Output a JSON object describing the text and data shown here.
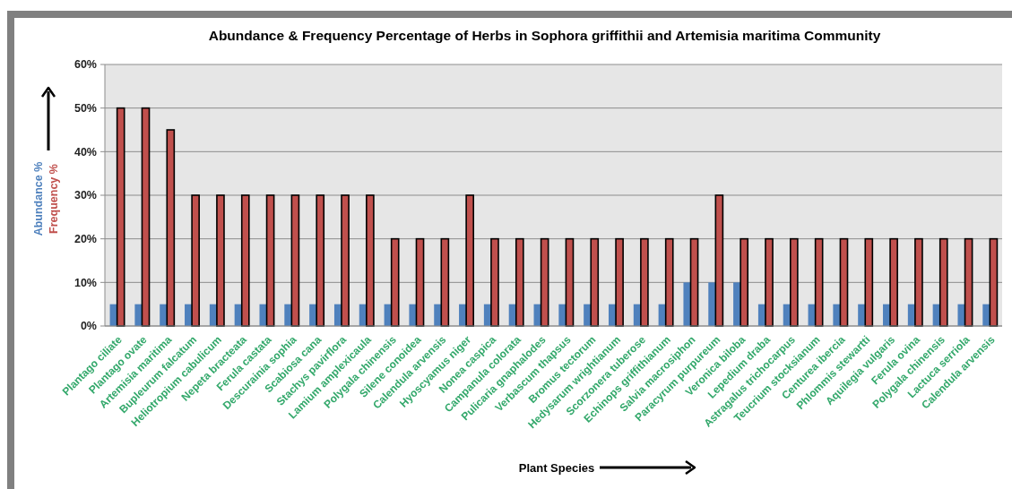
{
  "chart_data": {
    "type": "bar",
    "title": "Abundance & Frequency Percentage of Herbs in Sophora griffithii and Artemisia maritima Community",
    "xlabel": "Plant Species",
    "categories": [
      "Plantago ciliate",
      "Plantago ovate",
      "Artemisia maritima",
      "Bupleurum falcatum",
      "Heliotropium cabulicum",
      "Nepeta bracteata",
      "Ferula castata",
      "Descurainia sophia",
      "Scabiosa cana",
      "Stachys pavirflora",
      "Lamium amplexicaula",
      "Polygala chinensis",
      "Silene conoidea",
      "Calendula arvensis",
      "Hyoscyamus niger",
      "Nonea caspica",
      "Campanula colorata",
      "Pulicaria gnaphalodes",
      "Verbascum thapsus",
      "Bromus tectorum",
      "Hedysarum wrightianum",
      "Scorzonera tuberose",
      "Echinops griffithianum",
      "Salvia macrosiphon",
      "Paracyrum purpureum",
      "Veronica biloba",
      "Lepedium draba",
      "Astragalus trichocarpus",
      "Teucrium stocksianum",
      "Centurea ibercia",
      "Phlommis stewartti",
      "Aquilegia vulgaris",
      "Ferula ovina",
      "Polygala chinensis",
      "Lactuca serriola",
      "Calendula arvensis"
    ],
    "series": [
      {
        "name": "Abundance %",
        "color": "#4f81bd",
        "values": [
          5,
          5,
          5,
          5,
          5,
          5,
          5,
          5,
          5,
          5,
          5,
          5,
          5,
          5,
          5,
          5,
          5,
          5,
          5,
          5,
          5,
          5,
          5,
          10,
          10,
          10,
          5,
          5,
          5,
          5,
          5,
          5,
          5,
          5,
          5,
          5
        ]
      },
      {
        "name": "Frequency %",
        "color": "#c0504d",
        "values": [
          50,
          50,
          45,
          30,
          30,
          30,
          30,
          30,
          30,
          30,
          30,
          20,
          20,
          20,
          30,
          20,
          20,
          20,
          20,
          20,
          20,
          20,
          20,
          20,
          30,
          20,
          20,
          20,
          20,
          20,
          20,
          20,
          20,
          20,
          20,
          20
        ]
      }
    ],
    "ylim": [
      0,
      60
    ],
    "yticks": [
      {
        "value": 0,
        "label": "0%"
      },
      {
        "value": 10,
        "label": "10%"
      },
      {
        "value": 20,
        "label": "20%"
      },
      {
        "value": 30,
        "label": "30%"
      },
      {
        "value": 40,
        "label": "40%"
      },
      {
        "value": 50,
        "label": "50%"
      },
      {
        "value": 60,
        "label": "60%"
      }
    ],
    "grid": "y"
  }
}
